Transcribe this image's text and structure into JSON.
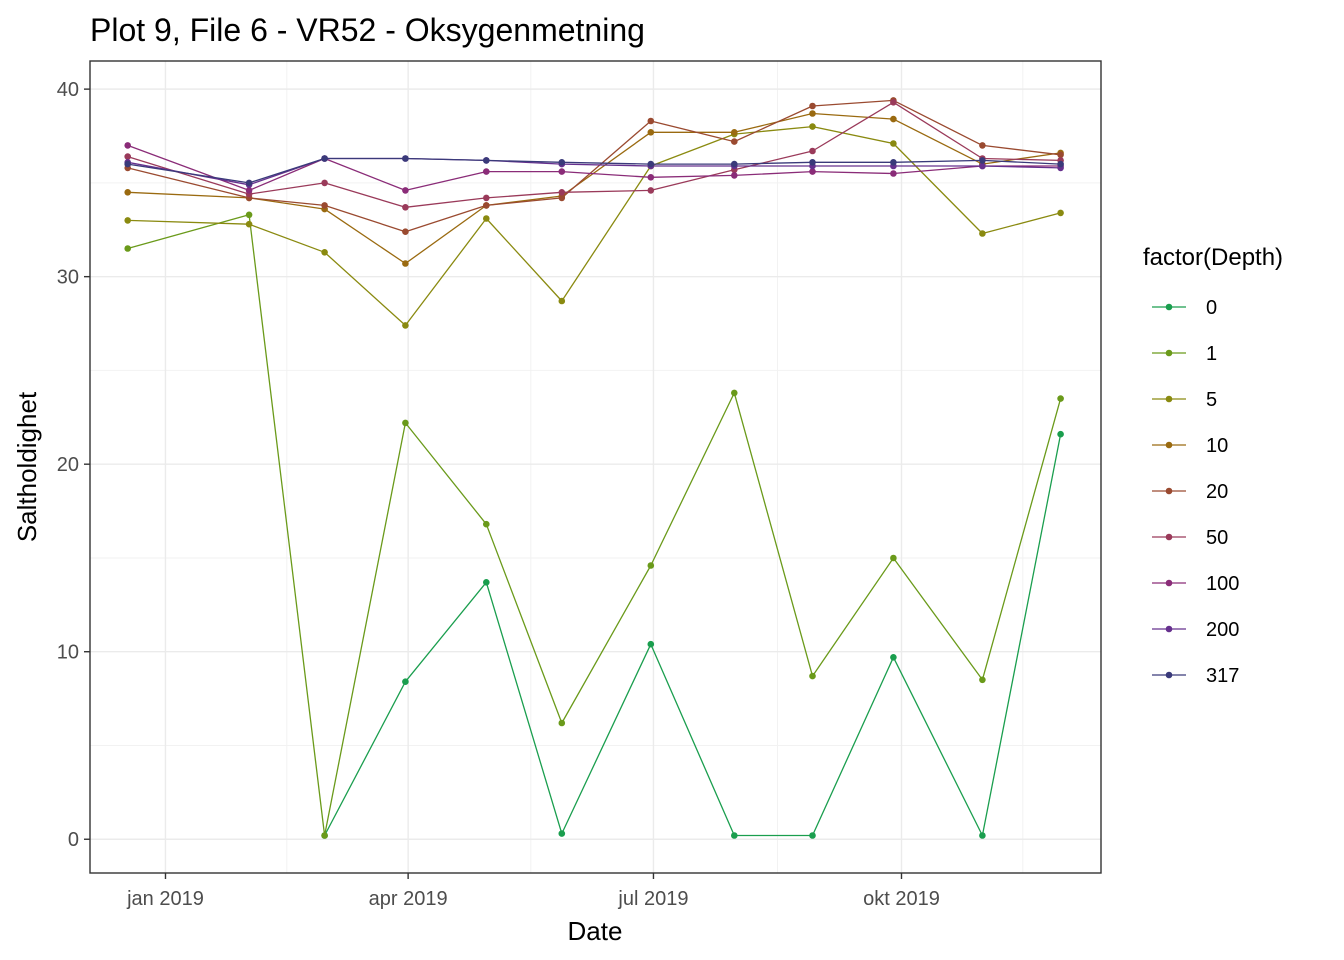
{
  "chart_data": {
    "type": "line",
    "title": "Plot 9, File 6 - VR52  -  Oksygenmetning",
    "xlabel": "Date",
    "ylabel": "Saltholdighet",
    "xlim": [
      "2018-12-04",
      "2019-12-14"
    ],
    "ylim": [
      -1.8,
      41.5
    ],
    "x_ticks": [
      {
        "date": "2019-01-01",
        "label": "jan 2019"
      },
      {
        "date": "2019-04-01",
        "label": "apr 2019"
      },
      {
        "date": "2019-07-01",
        "label": "jul 2019"
      },
      {
        "date": "2019-10-01",
        "label": "okt 2019"
      }
    ],
    "y_ticks": [
      0,
      10,
      20,
      30,
      40
    ],
    "grid": true,
    "legend": {
      "title": "factor(Depth)",
      "position": "right"
    },
    "x": [
      "2018-12-18",
      "2019-02-01",
      "2019-03-01",
      "2019-03-31",
      "2019-04-30",
      "2019-05-28",
      "2019-06-30",
      "2019-07-31",
      "2019-08-29",
      "2019-09-28",
      "2019-10-31",
      "2019-11-29"
    ],
    "series": [
      {
        "name": "0",
        "color": "#1a9e4e",
        "values": [
          null,
          null,
          0.2,
          8.4,
          13.7,
          0.3,
          10.4,
          0.2,
          0.2,
          9.7,
          0.2,
          21.6
        ]
      },
      {
        "name": "1",
        "color": "#6a9a1a",
        "values": [
          31.5,
          33.3,
          0.2,
          22.2,
          16.8,
          6.2,
          14.6,
          23.8,
          8.7,
          15.0,
          8.5,
          23.5
        ]
      },
      {
        "name": "5",
        "color": "#8a8a10",
        "values": [
          33.0,
          32.8,
          31.3,
          27.4,
          33.1,
          28.7,
          35.9,
          37.6,
          38.0,
          37.1,
          32.3,
          33.4
        ]
      },
      {
        "name": "10",
        "color": "#9a6a10",
        "values": [
          34.5,
          34.2,
          33.6,
          30.7,
          33.8,
          34.3,
          37.7,
          37.7,
          38.7,
          38.4,
          36.0,
          36.6
        ]
      },
      {
        "name": "20",
        "color": "#9a4a30",
        "values": [
          35.8,
          34.2,
          33.8,
          32.4,
          33.8,
          34.2,
          38.3,
          37.2,
          39.1,
          39.4,
          37.0,
          36.5
        ]
      },
      {
        "name": "50",
        "color": "#9a3a5a",
        "values": [
          36.4,
          34.4,
          35.0,
          33.7,
          34.2,
          34.5,
          34.6,
          35.7,
          36.7,
          39.3,
          36.3,
          36.2
        ]
      },
      {
        "name": "100",
        "color": "#8a2c78",
        "values": [
          37.0,
          34.6,
          36.3,
          34.6,
          35.6,
          35.6,
          35.3,
          35.4,
          35.6,
          35.5,
          35.9,
          35.9
        ]
      },
      {
        "name": "200",
        "color": "#66308e",
        "values": [
          36.1,
          34.9,
          36.3,
          36.3,
          36.2,
          36.0,
          35.9,
          35.9,
          35.9,
          35.9,
          35.9,
          35.8
        ]
      },
      {
        "name": "317",
        "color": "#3a3a7a",
        "values": [
          36.0,
          35.0,
          36.3,
          36.3,
          36.2,
          36.1,
          36.0,
          36.0,
          36.1,
          36.1,
          36.2,
          36.0
        ]
      }
    ]
  }
}
